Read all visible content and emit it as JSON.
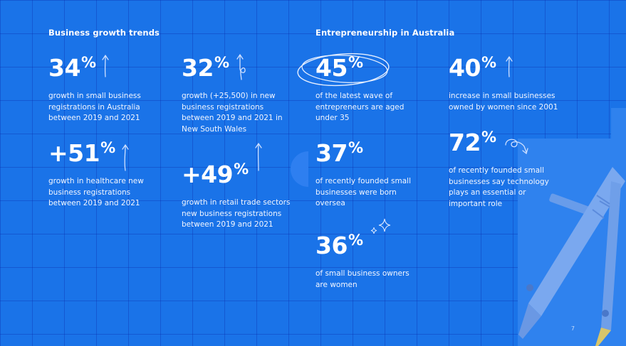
{
  "sections": {
    "business_growth_title": "Business growth trends",
    "entrepreneurship_title": "Entrepreneurship in Australia"
  },
  "stats": {
    "s1": {
      "value": "34",
      "unit": "%",
      "desc": "growth in small business registrations in Australia between 2019 and 2021"
    },
    "s2": {
      "value": "32",
      "unit": "%",
      "desc": "growth (+25,500) in new business registrations between 2019 and 2021 in New South Wales"
    },
    "s3": {
      "value": "+51",
      "unit": "%",
      "desc": "growth in healthcare new business registrations between 2019 and 2021"
    },
    "s4": {
      "value": "+49",
      "unit": "%",
      "desc": "growth in retail trade sectors new business registrations between 2019 and 2021"
    },
    "s5": {
      "value": "45",
      "unit": "%",
      "desc": "of the latest wave of entrepreneurs are aged under 35"
    },
    "s6": {
      "value": "40",
      "unit": "%",
      "desc": "increase in small businesses owned by women since 2001"
    },
    "s7": {
      "value": "37",
      "unit": "%",
      "desc": "of recently founded small businesses were born oversea"
    },
    "s8": {
      "value": "72",
      "unit": "%",
      "desc": "of recently founded small businesses say technology plays an essential or important role"
    },
    "s9": {
      "value": "36",
      "unit": "%",
      "desc": "of small business owners are women"
    }
  },
  "page_number": "7",
  "colors": {
    "background": "#1a73e8",
    "grid": "#0a28aa",
    "compass": "#7aa8ef"
  }
}
